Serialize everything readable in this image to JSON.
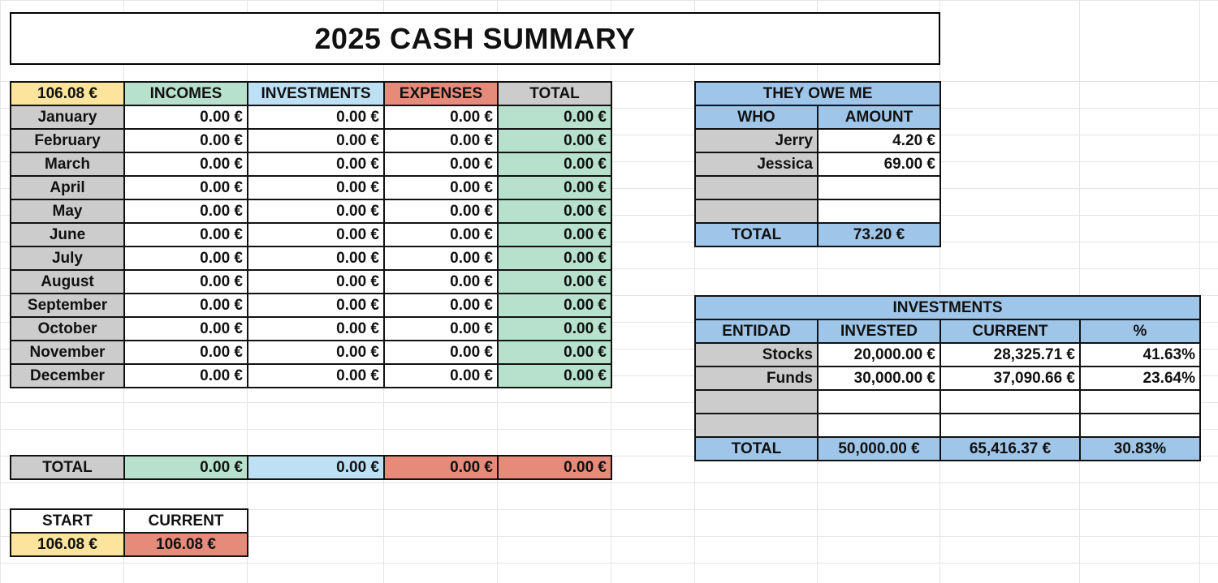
{
  "title": "2025 CASH SUMMARY",
  "summary": {
    "balance": "106.08 €",
    "headers": [
      "INCOMES",
      "INVESTMENTS",
      "EXPENSES",
      "TOTAL"
    ],
    "rows": [
      {
        "month": "January",
        "incomes": "0.00 €",
        "investments": "0.00 €",
        "expenses": "0.00 €",
        "total": "0.00 €"
      },
      {
        "month": "February",
        "incomes": "0.00 €",
        "investments": "0.00 €",
        "expenses": "0.00 €",
        "total": "0.00 €"
      },
      {
        "month": "March",
        "incomes": "0.00 €",
        "investments": "0.00 €",
        "expenses": "0.00 €",
        "total": "0.00 €"
      },
      {
        "month": "April",
        "incomes": "0.00 €",
        "investments": "0.00 €",
        "expenses": "0.00 €",
        "total": "0.00 €"
      },
      {
        "month": "May",
        "incomes": "0.00 €",
        "investments": "0.00 €",
        "expenses": "0.00 €",
        "total": "0.00 €"
      },
      {
        "month": "June",
        "incomes": "0.00 €",
        "investments": "0.00 €",
        "expenses": "0.00 €",
        "total": "0.00 €"
      },
      {
        "month": "July",
        "incomes": "0.00 €",
        "investments": "0.00 €",
        "expenses": "0.00 €",
        "total": "0.00 €"
      },
      {
        "month": "August",
        "incomes": "0.00 €",
        "investments": "0.00 €",
        "expenses": "0.00 €",
        "total": "0.00 €"
      },
      {
        "month": "September",
        "incomes": "0.00 €",
        "investments": "0.00 €",
        "expenses": "0.00 €",
        "total": "0.00 €"
      },
      {
        "month": "October",
        "incomes": "0.00 €",
        "investments": "0.00 €",
        "expenses": "0.00 €",
        "total": "0.00 €"
      },
      {
        "month": "November",
        "incomes": "0.00 €",
        "investments": "0.00 €",
        "expenses": "0.00 €",
        "total": "0.00 €"
      },
      {
        "month": "December",
        "incomes": "0.00 €",
        "investments": "0.00 €",
        "expenses": "0.00 €",
        "total": "0.00 €"
      }
    ],
    "total_row": {
      "label": "TOTAL",
      "incomes": "0.00 €",
      "investments": "0.00 €",
      "expenses": "0.00 €",
      "total": "0.00 €"
    }
  },
  "balance_box": {
    "headers": [
      "START",
      "CURRENT"
    ],
    "start": "106.08 €",
    "current": "106.08 €"
  },
  "owe": {
    "title": "THEY OWE ME",
    "headers": [
      "WHO",
      "AMOUNT"
    ],
    "rows": [
      {
        "who": "Jerry",
        "amount": "4.20 €"
      },
      {
        "who": "Jessica",
        "amount": "69.00 €"
      },
      {
        "who": "",
        "amount": ""
      },
      {
        "who": "",
        "amount": ""
      }
    ],
    "total_label": "TOTAL",
    "total": "73.20 €"
  },
  "investments": {
    "title": "INVESTMENTS",
    "headers": [
      "ENTIDAD",
      "INVESTED",
      "CURRENT",
      "%"
    ],
    "rows": [
      {
        "entity": "Stocks",
        "invested": "20,000.00 €",
        "current": "28,325.71 €",
        "pct": "41.63%"
      },
      {
        "entity": "Funds",
        "invested": "30,000.00 €",
        "current": "37,090.66 €",
        "pct": "23.64%"
      },
      {
        "entity": "",
        "invested": "",
        "current": "",
        "pct": ""
      },
      {
        "entity": "",
        "invested": "",
        "current": "",
        "pct": ""
      }
    ],
    "total_label": "TOTAL",
    "total_invested": "50,000.00 €",
    "total_current": "65,416.37 €",
    "total_pct": "30.83%"
  },
  "colors": {
    "yellow": "#fde49c",
    "green": "#b7e1cc",
    "light_blue": "#bde0f5",
    "red": "#e68a7a",
    "gray": "#cccccc",
    "blue": "#9fc5e8"
  }
}
